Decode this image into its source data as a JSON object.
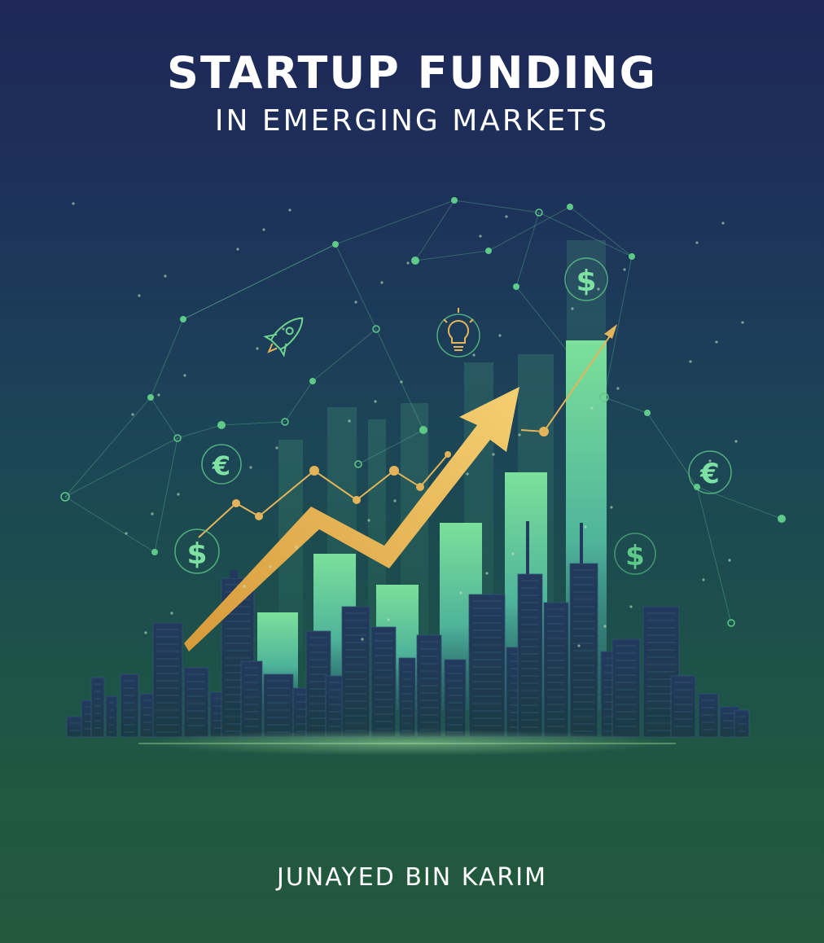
{
  "cover": {
    "title": "STARTUP FUNDING",
    "subtitle": "IN EMERGING MARKETS",
    "author": "JUNAYED BIN KARIM"
  },
  "illustration": {
    "icons": [
      "rocket-icon",
      "lightbulb-icon",
      "dollar-icon",
      "euro-icon"
    ],
    "currency_glyphs": {
      "dollar": "$",
      "euro": "€"
    },
    "colors": {
      "background_top": "#1e2758",
      "background_bottom": "#22583c",
      "bar": "#6fd490",
      "arrow": "#e8b85a",
      "network": "#5fc98a",
      "building": "#1c2f4e"
    }
  }
}
